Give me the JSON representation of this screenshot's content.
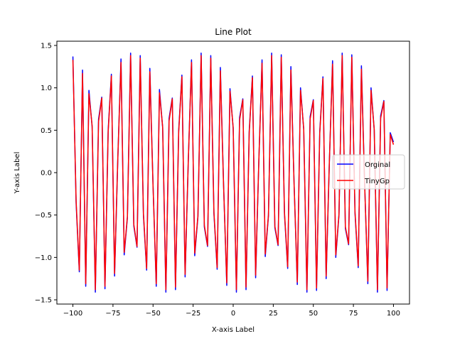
{
  "chart_data": {
    "type": "line",
    "title": "Line Plot",
    "xlabel": "X-axis Label",
    "ylabel": "Y-axis Label",
    "xlim": [
      -110,
      110
    ],
    "ylim": [
      -1.55,
      1.55
    ],
    "x_ticks": [
      -100,
      -75,
      -50,
      -25,
      0,
      25,
      50,
      75,
      100
    ],
    "x_tick_labels": [
      "−100",
      "−75",
      "−50",
      "−25",
      "0",
      "25",
      "50",
      "75",
      "100"
    ],
    "y_ticks": [
      -1.5,
      -1.0,
      -0.5,
      0.0,
      0.5,
      1.0,
      1.5
    ],
    "y_tick_labels": [
      "−1.5",
      "−1.0",
      "−0.5",
      "0.0",
      "0.5",
      "1.0",
      "1.5"
    ],
    "grid": false,
    "legend_position": "center-right",
    "x": [
      -100,
      -98,
      -96,
      -94,
      -92,
      -90,
      -88,
      -86,
      -84,
      -82,
      -80,
      -78,
      -76,
      -74,
      -72,
      -70,
      -68,
      -66,
      -64,
      -62,
      -60,
      -58,
      -56,
      -54,
      -52,
      -50,
      -48,
      -46,
      -44,
      -42,
      -40,
      -38,
      -36,
      -34,
      -32,
      -30,
      -28,
      -26,
      -24,
      -22,
      -20,
      -18,
      -16,
      -14,
      -12,
      -10,
      -8,
      -6,
      -4,
      -2,
      0,
      2,
      4,
      6,
      8,
      10,
      12,
      14,
      16,
      18,
      20,
      22,
      24,
      26,
      28,
      30,
      32,
      34,
      36,
      38,
      40,
      42,
      44,
      46,
      48,
      50,
      52,
      54,
      56,
      58,
      60,
      62,
      64,
      66,
      68,
      70,
      72,
      74,
      76,
      78,
      80,
      82,
      84,
      86,
      88,
      90,
      92,
      94,
      96,
      98,
      100
    ],
    "series": [
      {
        "name": "Orginal",
        "color": "#0000ff",
        "values": [
          1.37,
          -0.36,
          -1.17,
          1.21,
          -1.34,
          0.97,
          0.54,
          -1.41,
          0.63,
          0.89,
          -1.37,
          0.5,
          1.16,
          -1.22,
          0.15,
          1.34,
          -0.97,
          -0.53,
          1.41,
          -0.63,
          -0.88,
          1.38,
          -0.5,
          -1.15,
          1.23,
          -0.15,
          -1.34,
          0.98,
          0.53,
          -1.41,
          0.64,
          0.88,
          -1.38,
          0.5,
          1.15,
          -1.23,
          0.14,
          1.33,
          -0.98,
          -0.52,
          1.41,
          -0.64,
          -0.87,
          1.38,
          -0.49,
          -1.14,
          1.24,
          -0.14,
          -1.33,
          0.99,
          0.52,
          -1.41,
          0.65,
          0.87,
          -1.38,
          0.49,
          1.14,
          -1.24,
          0.13,
          1.33,
          -0.99,
          -0.51,
          1.41,
          -0.65,
          -0.86,
          1.39,
          -0.49,
          -1.13,
          1.25,
          -0.13,
          -1.32,
          1.0,
          0.51,
          -1.41,
          0.66,
          0.86,
          -1.39,
          0.48,
          1.13,
          -1.25,
          0.12,
          1.32,
          -1.0,
          -0.5,
          1.41,
          -0.66,
          -0.85,
          1.39,
          -0.48,
          -1.12,
          1.26,
          -0.12,
          -1.31,
          1.0,
          0.5,
          -1.41,
          0.67,
          0.85,
          -1.39,
          0.47,
          0.36
        ]
      },
      {
        "name": "TinyGp",
        "color": "#ff0000",
        "values": [
          1.33,
          -0.33,
          -1.15,
          1.17,
          -1.31,
          0.93,
          0.55,
          -1.38,
          0.6,
          0.88,
          -1.34,
          0.48,
          1.14,
          -1.19,
          0.16,
          1.3,
          -0.94,
          -0.52,
          1.38,
          -0.61,
          -0.87,
          1.35,
          -0.48,
          -1.13,
          1.19,
          -0.16,
          -1.31,
          0.94,
          0.54,
          -1.38,
          0.61,
          0.87,
          -1.35,
          0.48,
          1.13,
          -1.2,
          0.15,
          1.3,
          -0.95,
          -0.51,
          1.38,
          -0.62,
          -0.86,
          1.35,
          -0.47,
          -1.12,
          1.2,
          -0.15,
          -1.3,
          0.96,
          0.53,
          -1.38,
          0.62,
          0.86,
          -1.35,
          0.47,
          1.12,
          -1.21,
          0.14,
          1.29,
          -0.96,
          -0.5,
          1.38,
          -0.63,
          -0.85,
          1.36,
          -0.47,
          -1.11,
          1.21,
          -0.14,
          -1.29,
          0.97,
          0.52,
          -1.38,
          0.63,
          0.85,
          -1.36,
          0.46,
          1.11,
          -1.22,
          0.13,
          1.28,
          -0.97,
          -0.49,
          1.38,
          -0.64,
          -0.84,
          1.36,
          -0.46,
          -1.1,
          1.22,
          -0.13,
          -1.28,
          0.97,
          0.51,
          -1.38,
          0.64,
          0.84,
          -1.36,
          0.45,
          0.33
        ]
      }
    ]
  }
}
